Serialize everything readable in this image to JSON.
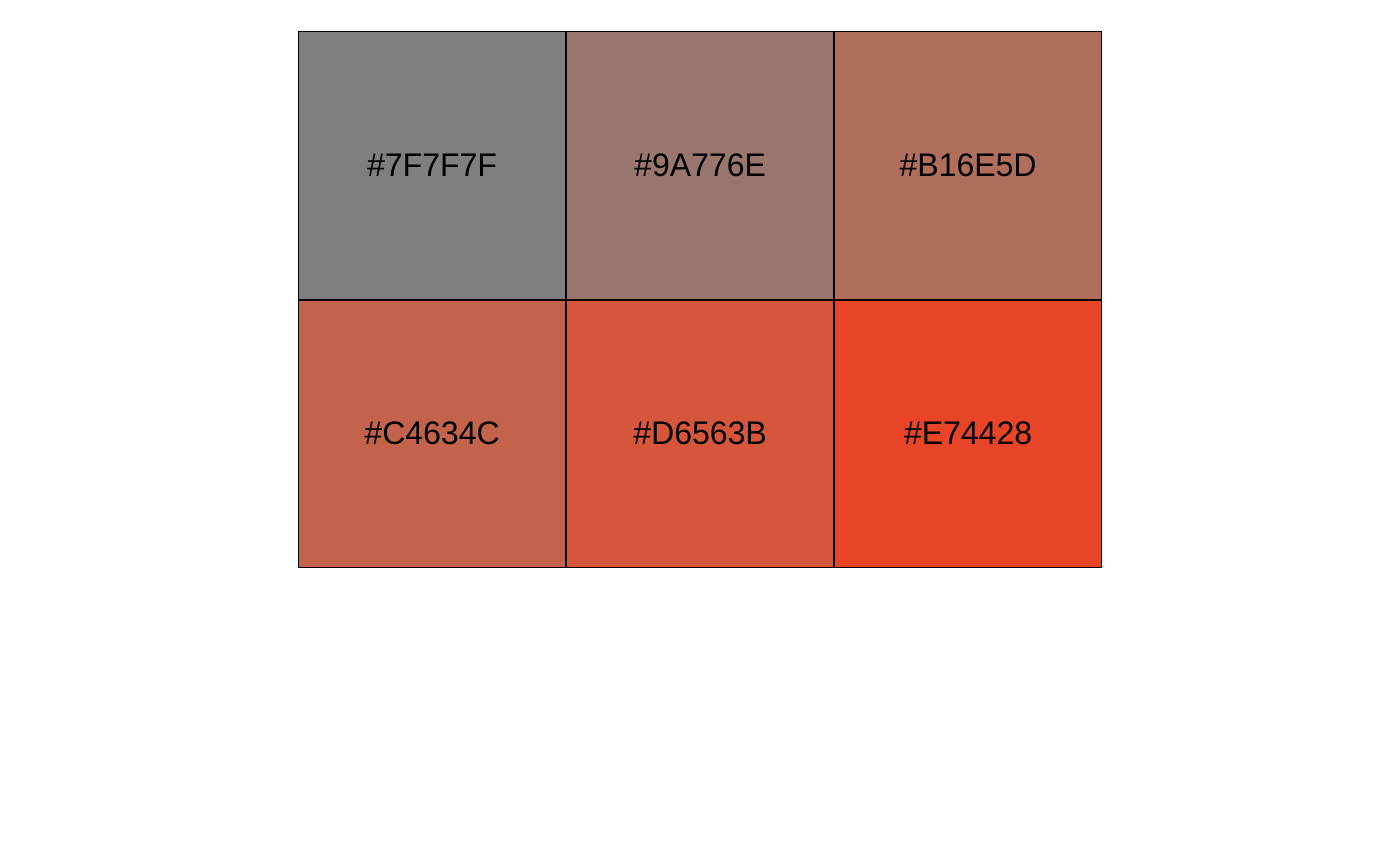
{
  "swatches": [
    {
      "label": "#7F7F7F",
      "color": "#7F7F7F"
    },
    {
      "label": "#9A776E",
      "color": "#9A776E"
    },
    {
      "label": "#B16E5D",
      "color": "#B16E5D"
    },
    {
      "label": "#C4634C",
      "color": "#C4634C"
    },
    {
      "label": "#D6563B",
      "color": "#D6563B"
    },
    {
      "label": "#E74428",
      "color": "#E74428"
    }
  ]
}
